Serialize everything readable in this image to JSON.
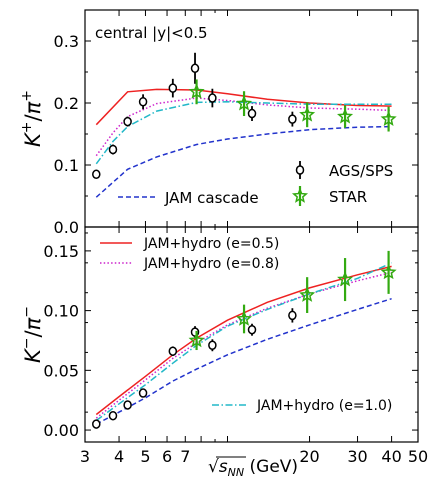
{
  "chart_data": [
    {
      "type": "line",
      "panel": "top",
      "ylabel": "K⁺/π⁺",
      "ylabel_parts": {
        "base": "K",
        "base_sup": "+",
        "sep": "/",
        "den": "π",
        "den_sup": "+"
      },
      "ylim": [
        0.0,
        0.35
      ],
      "yticks": [
        0.0,
        0.1,
        0.2,
        0.3
      ],
      "yticklabels": [
        "0.0",
        "0.1",
        "0.2",
        "0.3"
      ],
      "xscale": "log",
      "xlim": [
        3.0,
        50.0
      ],
      "annotation": "central |y|<0.5",
      "grid": false,
      "series": [
        {
          "name": "",
          "style": "solid",
          "color": "#ee2222",
          "x": [
            3.3,
            4.3,
            5.5,
            7.7,
            10,
            14,
            20,
            30,
            40
          ],
          "y": [
            0.165,
            0.218,
            0.222,
            0.221,
            0.215,
            0.206,
            0.2,
            0.196,
            0.195
          ]
        },
        {
          "name": "",
          "style": "dotted",
          "color": "#cc22cc",
          "x": [
            3.3,
            3.8,
            4.3,
            5.5,
            7.7,
            10,
            14,
            20,
            30,
            40
          ],
          "y": [
            0.115,
            0.152,
            0.178,
            0.199,
            0.208,
            0.204,
            0.197,
            0.192,
            0.19,
            0.188
          ]
        },
        {
          "name": "",
          "style": "dashdot",
          "color": "#22b8c8",
          "x": [
            3.3,
            3.8,
            4.3,
            5.5,
            7.7,
            10,
            14,
            20,
            30,
            40
          ],
          "y": [
            0.102,
            0.138,
            0.162,
            0.187,
            0.201,
            0.202,
            0.2,
            0.198,
            0.198,
            0.198
          ]
        },
        {
          "name": "JAM cascade",
          "style": "dashed",
          "color": "#2233cc",
          "x": [
            3.3,
            4.3,
            5.5,
            7.7,
            10,
            14,
            20,
            30,
            40
          ],
          "y": [
            0.048,
            0.093,
            0.113,
            0.133,
            0.142,
            0.15,
            0.157,
            0.161,
            0.162
          ]
        }
      ],
      "points": [
        {
          "name": "AGS/SPS",
          "marker": "circle",
          "color": "#000000",
          "x": [
            3.3,
            3.8,
            4.3,
            4.9,
            6.3,
            7.6,
            8.8,
            12.3,
            17.3
          ],
          "y": [
            0.085,
            0.125,
            0.17,
            0.202,
            0.224,
            0.256,
            0.208,
            0.183,
            0.174
          ],
          "err": [
            0.005,
            0.008,
            0.008,
            0.012,
            0.015,
            0.025,
            0.015,
            0.012,
            0.012
          ]
        },
        {
          "name": "STAR",
          "marker": "star",
          "color": "#33aa11",
          "x": [
            7.7,
            11.5,
            19.6,
            27,
            39
          ],
          "y": [
            0.218,
            0.199,
            0.181,
            0.178,
            0.174
          ],
          "err": [
            0.02,
            0.02,
            0.02,
            0.018,
            0.02
          ]
        }
      ]
    },
    {
      "type": "line",
      "panel": "bottom",
      "ylabel": "K⁻/π⁻",
      "ylabel_parts": {
        "base": "K",
        "base_sup": "−",
        "sep": "/",
        "den": "π",
        "den_sup": "−"
      },
      "ylim": [
        -0.01,
        0.17
      ],
      "yticks": [
        0.0,
        0.05,
        0.1,
        0.15
      ],
      "yticklabels": [
        "0.00",
        "0.05",
        "0.10",
        "0.15"
      ],
      "xscale": "log",
      "xlim": [
        3.0,
        50.0
      ],
      "xlabel_parts": {
        "sqrt": "√",
        "base": "s",
        "sub": "NN",
        "unit": " (GeV)"
      },
      "xticks": [
        3,
        4,
        5,
        6,
        7,
        8,
        10,
        20,
        30,
        40,
        50
      ],
      "xticklabels": [
        "3",
        "4",
        "5",
        "6",
        "7",
        "",
        "",
        "20",
        "30",
        "40",
        "50"
      ],
      "grid": false,
      "series": [
        {
          "name": "JAM+hydro (e=0.5)",
          "style": "solid",
          "color": "#ee2222",
          "x": [
            3.3,
            4,
            5,
            6.3,
            7.7,
            10,
            14,
            20,
            30,
            40
          ],
          "y": [
            0.013,
            0.028,
            0.045,
            0.063,
            0.077,
            0.092,
            0.107,
            0.119,
            0.13,
            0.137
          ]
        },
        {
          "name": "JAM+hydro (e=0.8)",
          "style": "dotted",
          "color": "#cc22cc",
          "x": [
            3.3,
            4,
            5,
            6.3,
            7.7,
            10,
            14,
            20,
            30,
            40
          ],
          "y": [
            0.01,
            0.025,
            0.042,
            0.06,
            0.073,
            0.088,
            0.102,
            0.114,
            0.125,
            0.132
          ]
        },
        {
          "name": "JAM+hydro (e=1.0)",
          "style": "dashdot",
          "color": "#22b8c8",
          "x": [
            3.3,
            4,
            5,
            6.3,
            7.7,
            10,
            14,
            20,
            30,
            40
          ],
          "y": [
            0.008,
            0.022,
            0.038,
            0.056,
            0.071,
            0.087,
            0.101,
            0.114,
            0.127,
            0.14
          ]
        },
        {
          "name": "",
          "style": "dashed",
          "color": "#2233cc",
          "x": [
            3.3,
            4,
            5,
            6.3,
            7.7,
            10,
            14,
            20,
            30,
            40
          ],
          "y": [
            0.005,
            0.015,
            0.027,
            0.041,
            0.051,
            0.063,
            0.076,
            0.088,
            0.101,
            0.11
          ]
        }
      ],
      "points": [
        {
          "name": "",
          "marker": "circle",
          "color": "#000000",
          "x": [
            3.3,
            3.8,
            4.3,
            4.9,
            6.3,
            7.6,
            8.8,
            12.3,
            17.3
          ],
          "y": [
            0.005,
            0.012,
            0.021,
            0.031,
            0.066,
            0.082,
            0.071,
            0.084,
            0.096
          ],
          "err": [
            0.002,
            0.002,
            0.003,
            0.003,
            0.004,
            0.005,
            0.005,
            0.005,
            0.006
          ]
        },
        {
          "name": "",
          "marker": "star",
          "color": "#33aa11",
          "x": [
            7.7,
            11.5,
            19.6,
            27,
            39
          ],
          "y": [
            0.075,
            0.093,
            0.113,
            0.126,
            0.132
          ],
          "err": [
            0.008,
            0.012,
            0.015,
            0.018,
            0.018
          ]
        }
      ]
    }
  ]
}
